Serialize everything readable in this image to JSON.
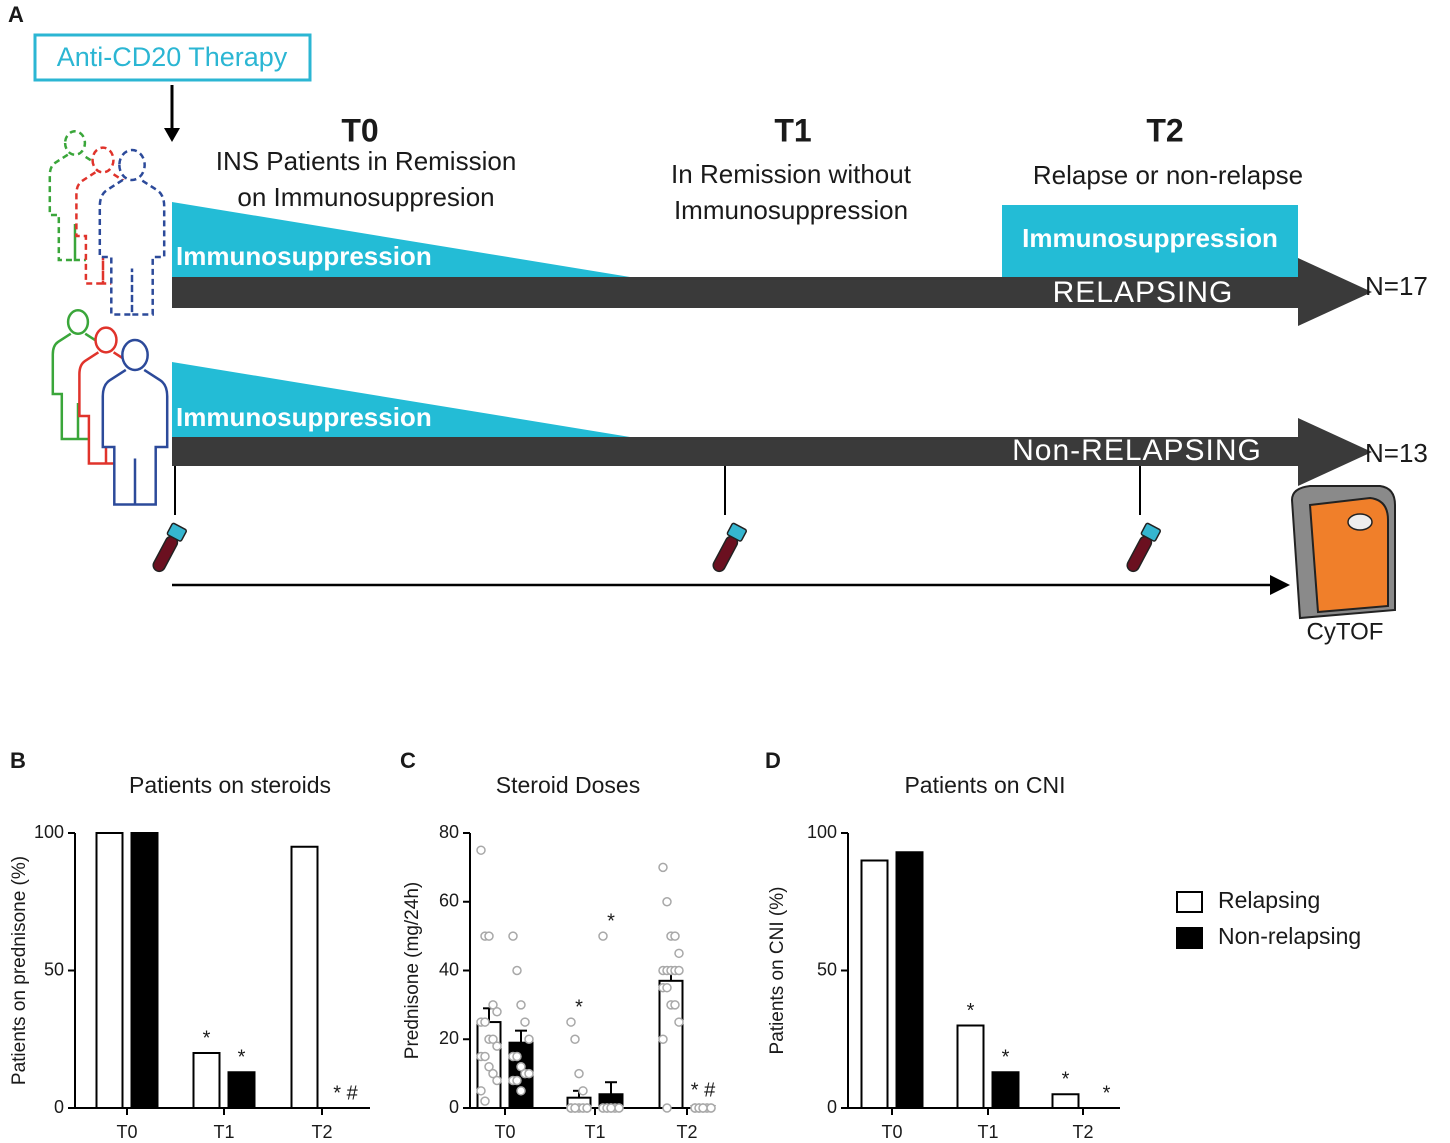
{
  "panel_a": {
    "label": "A",
    "therapy": "Anti-CD20 Therapy",
    "timepoints": [
      {
        "name": "T0",
        "lines": [
          "INS Patients in Remission",
          "on Immunosuppresion"
        ]
      },
      {
        "name": "T1",
        "lines": [
          "In Remission without",
          "Immunosuppression"
        ]
      },
      {
        "name": "T2",
        "lines": [
          "Relapse or non-relapse"
        ]
      }
    ],
    "arms": [
      {
        "name": "RELAPSING",
        "n": "N=17",
        "treatment": "Immunosuppression",
        "treatment_t2": "Immunosuppression"
      },
      {
        "name": "Non-RELAPSING",
        "n": "N=13",
        "treatment": "Immunosuppression"
      }
    ],
    "instrument": "CyTOF"
  },
  "chart_data": [
    {
      "type": "bar",
      "panel": "B",
      "title": "Patients on steroids",
      "y_label": "Patients on prednisone (%)",
      "categories": [
        "T0",
        "T1",
        "T2"
      ],
      "bar_edge": "#000000",
      "series": [
        {
          "name": "Relapsing",
          "color": "#ffffff",
          "values": [
            100,
            20,
            95
          ],
          "significance": [
            null,
            "*",
            null
          ]
        },
        {
          "name": "Non-relapsing",
          "color": "#000000",
          "values": [
            100,
            13,
            0
          ],
          "significance": [
            null,
            "*",
            "* #"
          ]
        }
      ],
      "ylim": [
        0,
        100
      ],
      "yticks": [
        0,
        50,
        100
      ]
    },
    {
      "type": "bar",
      "panel": "C",
      "title": "Steroid Doses",
      "y_label": "Prednisone (mg/24h)",
      "categories": [
        "T0",
        "T1",
        "T2"
      ],
      "bar_edge": "#000000",
      "point_color": "#a8a8a8",
      "series": [
        {
          "name": "Relapsing",
          "color": "#ffffff",
          "values": [
            25,
            3,
            37
          ],
          "errors": [
            4,
            2,
            3.5
          ],
          "significance": [
            null,
            "*",
            null
          ],
          "points": [
            [
              75,
              50,
              50,
              30,
              28,
              25,
              25,
              20,
              20,
              18,
              15,
              15,
              12,
              10,
              8,
              5,
              2
            ],
            [
              25,
              20,
              10,
              5,
              0,
              0,
              0,
              0,
              0,
              0,
              0,
              0,
              0,
              0,
              0,
              0,
              0
            ],
            [
              70,
              60,
              50,
              50,
              45,
              40,
              40,
              40,
              40,
              40,
              35,
              35,
              30,
              30,
              25,
              20,
              0
            ]
          ]
        },
        {
          "name": "Non-relapsing",
          "color": "#000000",
          "values": [
            19,
            4,
            0.5
          ],
          "errors": [
            3.5,
            3.5,
            0.3
          ],
          "significance": [
            null,
            "*",
            "* #"
          ],
          "points": [
            [
              50,
              40,
              30,
              25,
              20,
              15,
              15,
              12,
              10,
              10,
              8,
              8,
              5
            ],
            [
              50,
              0,
              0,
              0,
              0,
              0,
              0,
              0,
              0,
              0,
              0,
              0,
              0
            ],
            [
              0,
              0,
              0,
              0,
              0,
              0,
              0,
              0,
              0,
              0,
              0,
              0,
              0
            ]
          ]
        }
      ],
      "ylim": [
        0,
        80
      ],
      "yticks": [
        0,
        20,
        40,
        60,
        80
      ]
    },
    {
      "type": "bar",
      "panel": "D",
      "title": "Patients on CNI",
      "y_label": "Patients on CNI (%)",
      "categories": [
        "T0",
        "T1",
        "T2"
      ],
      "bar_edge": "#000000",
      "legend": "right",
      "series": [
        {
          "name": "Relapsing",
          "color": "#ffffff",
          "values": [
            90,
            30,
            5
          ],
          "significance": [
            null,
            "*",
            "*"
          ]
        },
        {
          "name": "Non-relapsing",
          "color": "#000000",
          "values": [
            93,
            13,
            0
          ],
          "significance": [
            null,
            "*",
            "*"
          ]
        }
      ],
      "ylim": [
        0,
        100
      ],
      "yticks": [
        0,
        50,
        100
      ]
    }
  ]
}
